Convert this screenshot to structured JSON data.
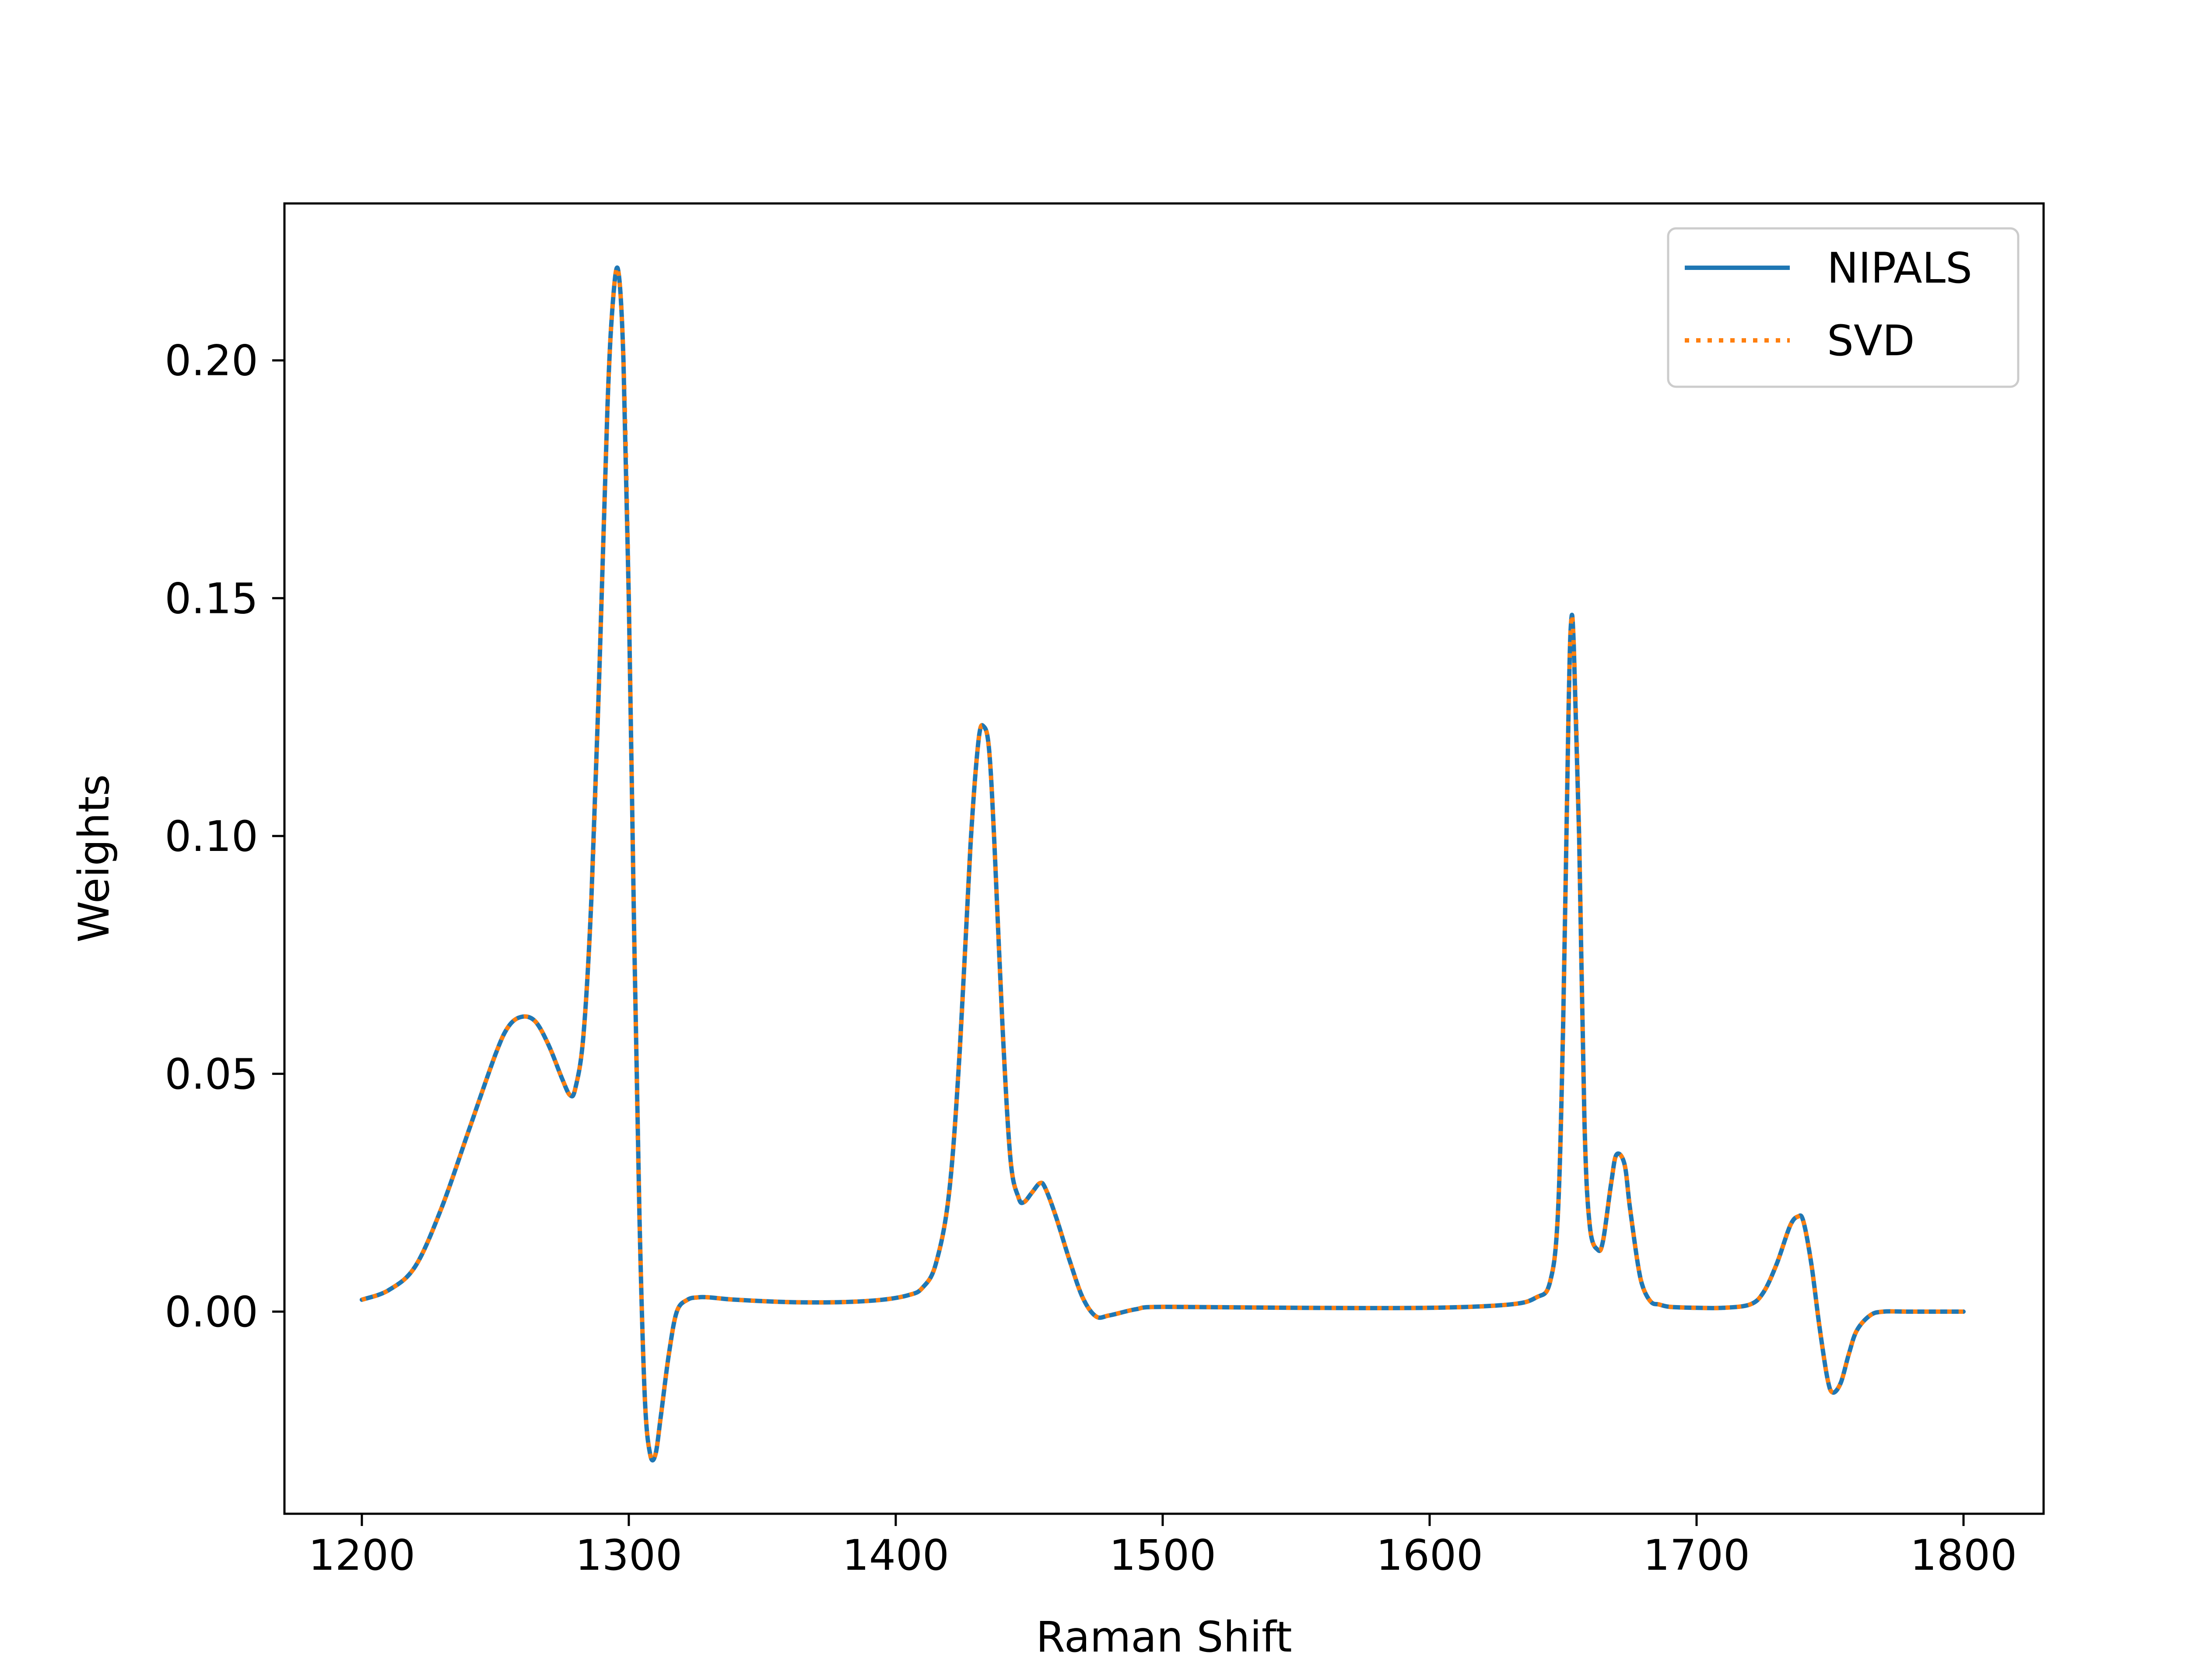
{
  "chart_data": {
    "type": "line",
    "title": "",
    "xlabel": "Raman Shift",
    "ylabel": "Weights",
    "xlim": [
      1171,
      1830
    ],
    "ylim": [
      -0.0425,
      0.233
    ],
    "x_ticks": [
      1200,
      1300,
      1400,
      1500,
      1600,
      1700,
      1800
    ],
    "x_tick_labels": [
      "1200",
      "1300",
      "1400",
      "1500",
      "1600",
      "1700",
      "1800"
    ],
    "y_ticks": [
      0.0,
      0.05,
      0.1,
      0.15,
      0.2
    ],
    "y_tick_labels": [
      "0.00",
      "0.05",
      "0.10",
      "0.15",
      "0.20"
    ],
    "grid": false,
    "legend_position": "top-right",
    "series_colors": {
      "NIPALS": "#1f77b4",
      "SVD": "#ff7f0e"
    },
    "series": [
      {
        "name": "NIPALS",
        "style": "solid",
        "color": "#1f77b4",
        "x": [
          1200,
          1210,
          1220,
          1230,
          1240,
          1250,
          1255,
          1260,
          1265,
          1270,
          1275,
          1278,
          1280,
          1283,
          1286,
          1289,
          1292,
          1294,
          1296,
          1298,
          1300,
          1302,
          1304,
          1306,
          1308,
          1310,
          1312,
          1315,
          1318,
          1322,
          1326,
          1330,
          1340,
          1360,
          1380,
          1395,
          1405,
          1410,
          1415,
          1420,
          1424,
          1428,
          1431,
          1433,
          1435,
          1437,
          1440,
          1443,
          1446,
          1448,
          1451,
          1454,
          1456,
          1460,
          1465,
          1470,
          1475,
          1480,
          1490,
          1500,
          1550,
          1600,
          1630,
          1640,
          1645,
          1648,
          1650,
          1652,
          1653,
          1654,
          1656,
          1658,
          1660,
          1663,
          1665,
          1668,
          1670,
          1673,
          1675,
          1678,
          1680,
          1683,
          1686,
          1690,
          1700,
          1710,
          1720,
          1725,
          1730,
          1735,
          1738,
          1740,
          1743,
          1746,
          1749,
          1751,
          1754,
          1757,
          1760,
          1765,
          1770,
          1780,
          1800
        ],
        "y": [
          0.0025,
          0.0045,
          0.0095,
          0.022,
          0.038,
          0.054,
          0.06,
          0.062,
          0.061,
          0.056,
          0.049,
          0.0455,
          0.047,
          0.058,
          0.087,
          0.135,
          0.19,
          0.212,
          0.219,
          0.2,
          0.15,
          0.08,
          0.02,
          -0.018,
          -0.03,
          -0.03,
          -0.022,
          -0.009,
          0.0,
          0.0025,
          0.003,
          0.003,
          0.0025,
          0.002,
          0.002,
          0.0025,
          0.0035,
          0.005,
          0.01,
          0.025,
          0.055,
          0.098,
          0.12,
          0.123,
          0.118,
          0.098,
          0.06,
          0.032,
          0.024,
          0.023,
          0.025,
          0.027,
          0.026,
          0.02,
          0.011,
          0.003,
          -0.001,
          -0.0008,
          0.0005,
          0.001,
          0.0008,
          0.0008,
          0.0015,
          0.003,
          0.006,
          0.02,
          0.06,
          0.125,
          0.145,
          0.14,
          0.1,
          0.04,
          0.018,
          0.013,
          0.015,
          0.027,
          0.033,
          0.031,
          0.022,
          0.01,
          0.005,
          0.002,
          0.0015,
          0.001,
          0.0008,
          0.0008,
          0.0015,
          0.004,
          0.01,
          0.018,
          0.02,
          0.019,
          0.01,
          -0.003,
          -0.014,
          -0.017,
          -0.015,
          -0.009,
          -0.004,
          -0.0008,
          0.0,
          0.0,
          0.0
        ]
      },
      {
        "name": "SVD",
        "style": "dotted",
        "color": "#ff7f0e",
        "x": [
          1200,
          1210,
          1220,
          1230,
          1240,
          1250,
          1255,
          1260,
          1265,
          1270,
          1275,
          1278,
          1280,
          1283,
          1286,
          1289,
          1292,
          1294,
          1296,
          1298,
          1300,
          1302,
          1304,
          1306,
          1308,
          1310,
          1312,
          1315,
          1318,
          1322,
          1326,
          1330,
          1340,
          1360,
          1380,
          1395,
          1405,
          1410,
          1415,
          1420,
          1424,
          1428,
          1431,
          1433,
          1435,
          1437,
          1440,
          1443,
          1446,
          1448,
          1451,
          1454,
          1456,
          1460,
          1465,
          1470,
          1475,
          1480,
          1490,
          1500,
          1550,
          1600,
          1630,
          1640,
          1645,
          1648,
          1650,
          1652,
          1653,
          1654,
          1656,
          1658,
          1660,
          1663,
          1665,
          1668,
          1670,
          1673,
          1675,
          1678,
          1680,
          1683,
          1686,
          1690,
          1700,
          1710,
          1720,
          1725,
          1730,
          1735,
          1738,
          1740,
          1743,
          1746,
          1749,
          1751,
          1754,
          1757,
          1760,
          1765,
          1770,
          1780,
          1800
        ],
        "y": [
          0.0025,
          0.0045,
          0.0095,
          0.022,
          0.038,
          0.054,
          0.06,
          0.062,
          0.061,
          0.056,
          0.049,
          0.0455,
          0.047,
          0.058,
          0.087,
          0.135,
          0.19,
          0.212,
          0.219,
          0.2,
          0.15,
          0.08,
          0.02,
          -0.018,
          -0.03,
          -0.03,
          -0.022,
          -0.009,
          0.0,
          0.0025,
          0.003,
          0.003,
          0.0025,
          0.002,
          0.002,
          0.0025,
          0.0035,
          0.005,
          0.01,
          0.025,
          0.055,
          0.098,
          0.12,
          0.123,
          0.118,
          0.098,
          0.06,
          0.032,
          0.024,
          0.023,
          0.025,
          0.027,
          0.026,
          0.02,
          0.011,
          0.003,
          -0.001,
          -0.0008,
          0.0005,
          0.001,
          0.0008,
          0.0008,
          0.0015,
          0.003,
          0.006,
          0.02,
          0.06,
          0.125,
          0.145,
          0.14,
          0.1,
          0.04,
          0.018,
          0.013,
          0.015,
          0.027,
          0.033,
          0.031,
          0.022,
          0.01,
          0.005,
          0.002,
          0.0015,
          0.001,
          0.0008,
          0.0008,
          0.0015,
          0.004,
          0.01,
          0.018,
          0.02,
          0.019,
          0.01,
          -0.003,
          -0.014,
          -0.017,
          -0.015,
          -0.009,
          -0.004,
          -0.0008,
          0.0,
          0.0,
          0.0
        ]
      }
    ]
  }
}
